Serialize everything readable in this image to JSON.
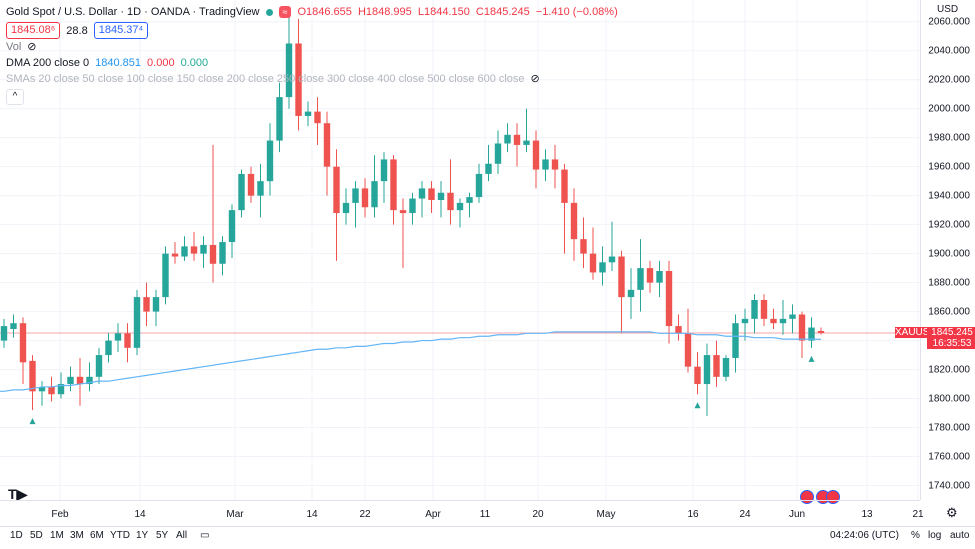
{
  "header": {
    "title": "Gold Spot / U.S. Dollar · 1D · OANDA · TradingView",
    "ohlc": {
      "o": "O1846.655",
      "h": "H1848.995",
      "l": "L1844.150",
      "c": "C1845.245",
      "chg": "−1.410 (−0.08%)"
    },
    "bid": "1845.08⁶",
    "spread": "28.8",
    "ask": "1845.37⁴",
    "vol_label": "Vol",
    "dma_label": "DMA 200 close 0",
    "dma_values": [
      "1840.851",
      "0.000",
      "0.000"
    ],
    "sma_label": "SMAs 20 close 50 close 100 close 150 close 200 close 250 close 300 close 400 close 500 close 600 close",
    "collapse_icon": "chevron-up-icon"
  },
  "axis": {
    "currency": "USD",
    "y_ticks": [
      "2060.000",
      "2040.000",
      "2020.000",
      "2000.000",
      "1980.000",
      "1960.000",
      "1940.000",
      "1920.000",
      "1900.000",
      "1880.000",
      "1860.000",
      "1840.000",
      "1820.000",
      "1800.000",
      "1780.000",
      "1760.000",
      "1740.000"
    ],
    "x_ticks": [
      "Feb",
      "14",
      "Mar",
      "14",
      "22",
      "Apr",
      "11",
      "20",
      "May",
      "16",
      "24",
      "Jun",
      "13",
      "21"
    ],
    "symbol_tag": "XAUUSD",
    "price_tag": "1845.245",
    "countdown_tag": "16:35:53"
  },
  "colors": {
    "up": "#26a69a",
    "down": "#ef5350",
    "ma": "#64b5f6",
    "last": "#f23645"
  },
  "bottom": {
    "ranges": [
      "1D",
      "5D",
      "1M",
      "3M",
      "6M",
      "YTD",
      "1Y",
      "5Y",
      "All"
    ],
    "time": "04:24:06 (UTC)",
    "opts": [
      "%",
      "log",
      "auto"
    ]
  },
  "chart_data": {
    "type": "candlestick",
    "ylim": [
      1730,
      2075
    ],
    "candles": [
      [
        1840,
        1855,
        1835,
        1850
      ],
      [
        1848,
        1858,
        1842,
        1852
      ],
      [
        1852,
        1856,
        1810,
        1825
      ],
      [
        1826,
        1830,
        1792,
        1805
      ],
      [
        1805,
        1812,
        1795,
        1808
      ],
      [
        1808,
        1815,
        1798,
        1803
      ],
      [
        1803,
        1818,
        1800,
        1810
      ],
      [
        1810,
        1822,
        1805,
        1815
      ],
      [
        1815,
        1828,
        1795,
        1810
      ],
      [
        1810,
        1825,
        1805,
        1815
      ],
      [
        1815,
        1835,
        1810,
        1830
      ],
      [
        1830,
        1845,
        1825,
        1840
      ],
      [
        1840,
        1852,
        1832,
        1845
      ],
      [
        1845,
        1852,
        1825,
        1835
      ],
      [
        1835,
        1875,
        1830,
        1870
      ],
      [
        1870,
        1880,
        1850,
        1860
      ],
      [
        1860,
        1875,
        1850,
        1870
      ],
      [
        1870,
        1905,
        1865,
        1900
      ],
      [
        1900,
        1908,
        1893,
        1898
      ],
      [
        1898,
        1912,
        1895,
        1905
      ],
      [
        1905,
        1915,
        1895,
        1900
      ],
      [
        1900,
        1912,
        1890,
        1906
      ],
      [
        1906,
        1975,
        1880,
        1893
      ],
      [
        1893,
        1912,
        1885,
        1908
      ],
      [
        1908,
        1934,
        1897,
        1930
      ],
      [
        1930,
        1958,
        1925,
        1955
      ],
      [
        1955,
        1960,
        1935,
        1940
      ],
      [
        1940,
        1962,
        1925,
        1950
      ],
      [
        1950,
        1990,
        1940,
        1978
      ],
      [
        1978,
        2018,
        1970,
        2008
      ],
      [
        2008,
        2070,
        2000,
        2045
      ],
      [
        2045,
        2062,
        1985,
        1995
      ],
      [
        1995,
        2005,
        1988,
        1998
      ],
      [
        1998,
        2008,
        1975,
        1990
      ],
      [
        1990,
        1998,
        1940,
        1960
      ],
      [
        1960,
        1972,
        1895,
        1928
      ],
      [
        1928,
        1945,
        1920,
        1935
      ],
      [
        1935,
        1950,
        1918,
        1945
      ],
      [
        1945,
        1952,
        1925,
        1932
      ],
      [
        1932,
        1968,
        1925,
        1950
      ],
      [
        1950,
        1970,
        1935,
        1965
      ],
      [
        1965,
        1968,
        1920,
        1930
      ],
      [
        1930,
        1938,
        1890,
        1928
      ],
      [
        1928,
        1942,
        1920,
        1938
      ],
      [
        1938,
        1950,
        1925,
        1945
      ],
      [
        1945,
        1950,
        1928,
        1937
      ],
      [
        1937,
        1950,
        1925,
        1942
      ],
      [
        1942,
        1965,
        1920,
        1930
      ],
      [
        1930,
        1938,
        1918,
        1935
      ],
      [
        1935,
        1942,
        1925,
        1939
      ],
      [
        1939,
        1962,
        1935,
        1955
      ],
      [
        1955,
        1975,
        1950,
        1962
      ],
      [
        1962,
        1985,
        1955,
        1976
      ],
      [
        1976,
        1990,
        1970,
        1982
      ],
      [
        1982,
        1990,
        1960,
        1975
      ],
      [
        1975,
        2000,
        1970,
        1978
      ],
      [
        1978,
        1985,
        1945,
        1958
      ],
      [
        1958,
        1972,
        1950,
        1965
      ],
      [
        1965,
        1975,
        1945,
        1958
      ],
      [
        1958,
        1962,
        1900,
        1935
      ],
      [
        1935,
        1945,
        1895,
        1910
      ],
      [
        1910,
        1925,
        1890,
        1900
      ],
      [
        1900,
        1918,
        1882,
        1887
      ],
      [
        1887,
        1905,
        1878,
        1894
      ],
      [
        1894,
        1922,
        1888,
        1898
      ],
      [
        1898,
        1902,
        1845,
        1870
      ],
      [
        1870,
        1890,
        1855,
        1875
      ],
      [
        1875,
        1910,
        1860,
        1890
      ],
      [
        1890,
        1895,
        1873,
        1880
      ],
      [
        1880,
        1895,
        1870,
        1888
      ],
      [
        1888,
        1895,
        1838,
        1850
      ],
      [
        1850,
        1858,
        1840,
        1845
      ],
      [
        1845,
        1862,
        1818,
        1822
      ],
      [
        1822,
        1832,
        1803,
        1810
      ],
      [
        1810,
        1838,
        1788,
        1830
      ],
      [
        1830,
        1840,
        1808,
        1815
      ],
      [
        1815,
        1830,
        1812,
        1828
      ],
      [
        1828,
        1858,
        1818,
        1852
      ],
      [
        1852,
        1862,
        1840,
        1855
      ],
      [
        1855,
        1872,
        1845,
        1868
      ],
      [
        1868,
        1872,
        1850,
        1855
      ],
      [
        1855,
        1862,
        1848,
        1852
      ],
      [
        1852,
        1868,
        1844,
        1855
      ],
      [
        1855,
        1865,
        1845,
        1858
      ],
      [
        1858,
        1860,
        1828,
        1840
      ],
      [
        1840,
        1856,
        1835,
        1849
      ],
      [
        1846.655,
        1848.995,
        1844.15,
        1845.245
      ]
    ],
    "ma200": [
      1805,
      1806,
      1806,
      1807,
      1808,
      1808,
      1809,
      1809,
      1810,
      1811,
      1812,
      1812,
      1813,
      1814,
      1815,
      1816,
      1817,
      1818,
      1819,
      1820,
      1821,
      1822,
      1823,
      1824,
      1825,
      1826,
      1827,
      1828,
      1829,
      1830,
      1831,
      1832,
      1833,
      1834,
      1834,
      1835,
      1835,
      1836,
      1836,
      1837,
      1838,
      1838,
      1839,
      1839,
      1840,
      1840,
      1841,
      1841,
      1842,
      1842,
      1843,
      1843,
      1844,
      1844,
      1844,
      1845,
      1845,
      1845,
      1846,
      1846,
      1846,
      1846,
      1846,
      1846,
      1846,
      1846,
      1846,
      1846,
      1846,
      1845,
      1845,
      1845,
      1845,
      1844,
      1844,
      1844,
      1843,
      1843,
      1843,
      1842,
      1842,
      1842,
      1841,
      1841,
      1841,
      1841,
      1840.851
    ],
    "signals_up_at": [
      3,
      73,
      85
    ]
  }
}
